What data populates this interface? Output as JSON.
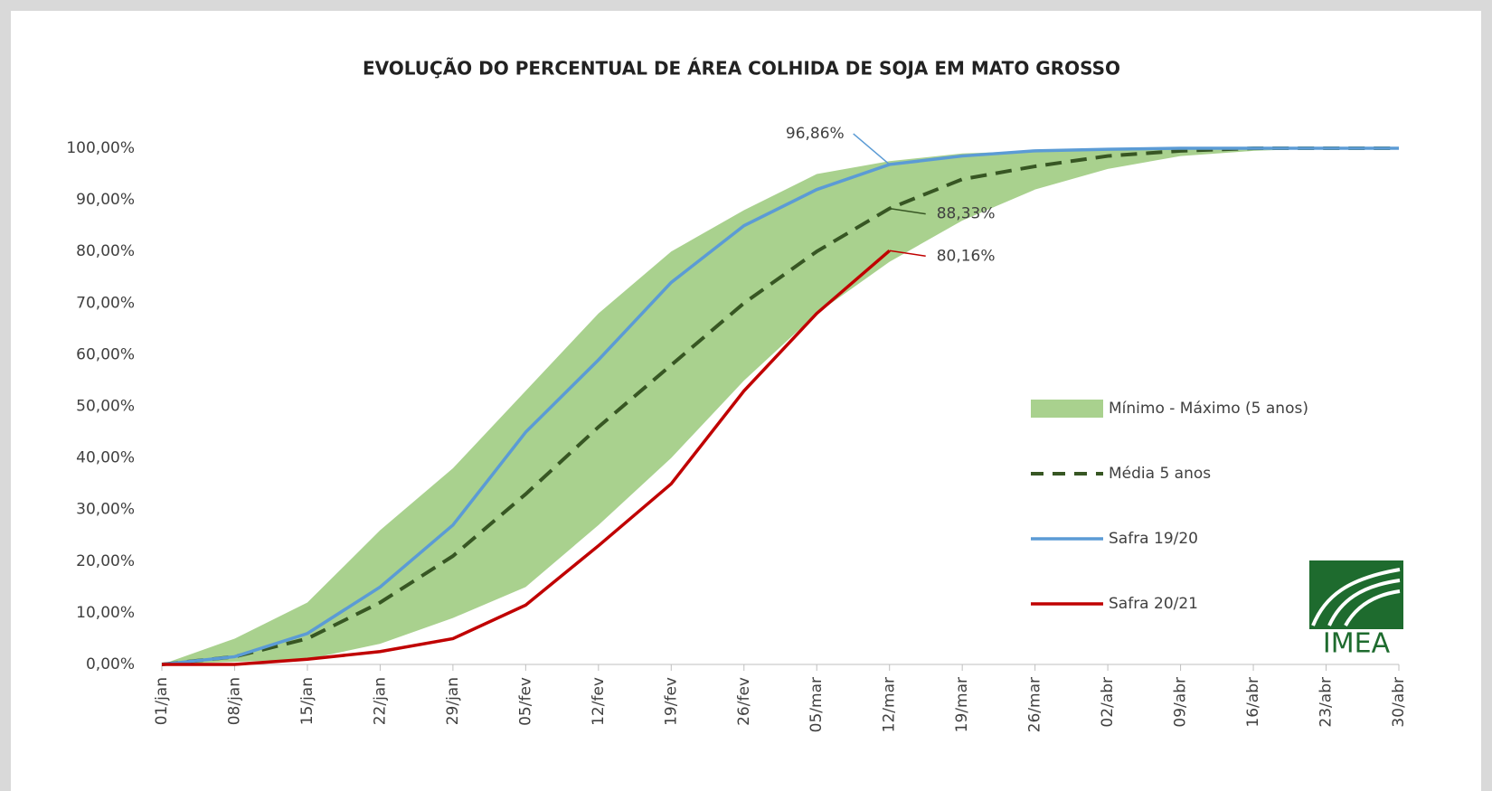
{
  "chart_data": {
    "type": "line",
    "title": "EVOLUÇÃO DO PERCENTUAL DE ÁREA COLHIDA DE SOJA EM MATO GROSSO",
    "categories": [
      "01/jan",
      "08/jan",
      "15/jan",
      "22/jan",
      "29/jan",
      "05/fev",
      "12/fev",
      "19/fev",
      "26/fev",
      "05/mar",
      "12/mar",
      "19/mar",
      "26/mar",
      "02/abr",
      "09/abr",
      "16/abr",
      "23/abr",
      "30/abr"
    ],
    "band": {
      "name": "Mínimo - Máximo (5 anos)",
      "color": "#a9d18e",
      "low": [
        0,
        0.5,
        1,
        4,
        9,
        15,
        27,
        40,
        55,
        68,
        78,
        86,
        92,
        96,
        98.5,
        99.5,
        100,
        100
      ],
      "high": [
        0,
        5,
        12,
        26,
        38,
        53,
        68,
        80,
        88,
        95,
        97.5,
        99,
        99.5,
        100,
        100,
        100,
        100,
        100
      ]
    },
    "series": [
      {
        "name": "Média 5 anos",
        "color": "#375623",
        "dashed": true,
        "values": [
          0,
          1.5,
          5,
          12,
          21,
          33,
          46,
          58,
          70,
          80,
          88.33,
          94,
          96.5,
          98.5,
          99.5,
          100,
          100,
          100
        ],
        "value_labels": [
          null,
          null,
          null,
          null,
          null,
          null,
          null,
          null,
          null,
          null,
          "88,33%",
          null,
          null,
          null,
          null,
          null,
          null,
          null
        ]
      },
      {
        "name": "Safra 19/20",
        "color": "#5b9bd5",
        "dashed": false,
        "values": [
          0,
          1.5,
          6,
          15,
          27,
          45,
          59,
          74,
          85,
          92,
          96.86,
          98.5,
          99.5,
          99.8,
          100,
          100,
          100,
          100
        ],
        "value_labels": [
          null,
          null,
          null,
          null,
          null,
          null,
          null,
          null,
          null,
          null,
          "96,86%",
          null,
          null,
          null,
          null,
          null,
          null,
          null
        ]
      },
      {
        "name": "Safra 20/21",
        "color": "#c00000",
        "dashed": false,
        "values": [
          0,
          0,
          1,
          2.5,
          5,
          11.5,
          23,
          35,
          53,
          68,
          80.16,
          null,
          null,
          null,
          null,
          null,
          null,
          null
        ],
        "value_labels": [
          null,
          null,
          null,
          null,
          null,
          null,
          null,
          null,
          null,
          null,
          "80,16%",
          null,
          null,
          null,
          null,
          null,
          null,
          null
        ]
      }
    ],
    "ylim": [
      0,
      100
    ],
    "yticks": [
      {
        "value": 0,
        "label": "0,00%"
      },
      {
        "value": 10,
        "label": "10,00%"
      },
      {
        "value": 20,
        "label": "20,00%"
      },
      {
        "value": 30,
        "label": "30,00%"
      },
      {
        "value": 40,
        "label": "40,00%"
      },
      {
        "value": 50,
        "label": "50,00%"
      },
      {
        "value": 60,
        "label": "60,00%"
      },
      {
        "value": 70,
        "label": "70,00%"
      },
      {
        "value": 80,
        "label": "80,00%"
      },
      {
        "value": 90,
        "label": "90,00%"
      },
      {
        "value": 100,
        "label": "100,00%"
      }
    ],
    "legend": "lower right",
    "logo_text": "IMEA"
  }
}
